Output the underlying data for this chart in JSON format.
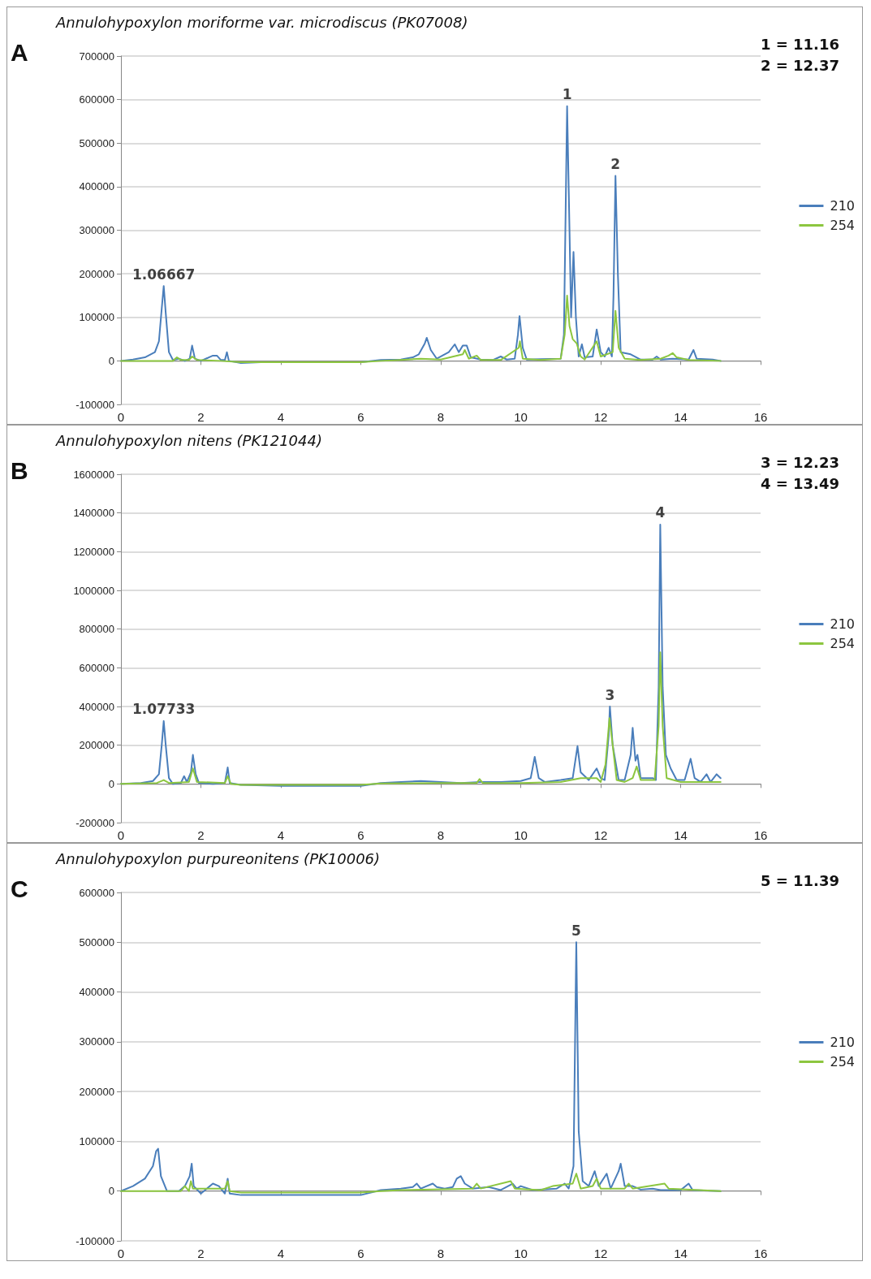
{
  "chart_data": [
    {
      "type": "line",
      "title": "Annulohypoxylon moriforme var. microdiscus (PK07008)",
      "xlim": [
        0,
        16
      ],
      "xticks": [
        0,
        2,
        4,
        6,
        8,
        10,
        12,
        14,
        16
      ],
      "ylim": [
        -100000,
        700000
      ],
      "yticks": [
        -100000,
        0,
        100000,
        200000,
        300000,
        400000,
        500000,
        600000,
        700000
      ],
      "grid": "y",
      "legend": "right",
      "annotations": [
        "A",
        "1 = 11.16",
        "2 = 12.37",
        {
          "text": "1.06667",
          "x": 1.07,
          "y": 172000
        },
        {
          "text": "1",
          "x": 11.16,
          "y": 585000
        },
        {
          "text": "2",
          "x": 12.37,
          "y": 425000
        }
      ],
      "series": [
        {
          "name": "210",
          "color": "#4a7ebb",
          "x": [
            0,
            0.3,
            0.6,
            0.85,
            0.95,
            1.02,
            1.07,
            1.12,
            1.2,
            1.3,
            1.45,
            1.6,
            1.72,
            1.78,
            1.85,
            2,
            2.3,
            2.4,
            2.5,
            2.6,
            2.65,
            2.7,
            3,
            3.5,
            4,
            6,
            6.5,
            7,
            7.3,
            7.45,
            7.6,
            7.65,
            7.75,
            7.9,
            8.2,
            8.35,
            8.45,
            8.55,
            8.65,
            8.75,
            9,
            9.3,
            9.5,
            9.65,
            9.85,
            9.93,
            9.97,
            10.05,
            10.15,
            10.5,
            11,
            11.08,
            11.16,
            11.22,
            11.26,
            11.32,
            11.38,
            11.45,
            11.53,
            11.6,
            11.8,
            11.9,
            12,
            12.1,
            12.2,
            12.28,
            12.32,
            12.37,
            12.43,
            12.5,
            12.75,
            13,
            13.3,
            13.4,
            13.5,
            13.8,
            14.2,
            14.32,
            14.4,
            14.8,
            15
          ],
          "values": [
            0,
            3000,
            8000,
            20000,
            45000,
            120000,
            172000,
            110000,
            20000,
            2000,
            5000,
            0,
            5000,
            35000,
            5000,
            0,
            12000,
            12000,
            2000,
            2000,
            20000,
            0,
            -5000,
            -3000,
            -3000,
            -3000,
            2000,
            3000,
            8000,
            15000,
            40000,
            53000,
            25000,
            5000,
            20000,
            38000,
            20000,
            35000,
            35000,
            8000,
            3000,
            2000,
            10000,
            3000,
            5000,
            60000,
            103000,
            30000,
            3000,
            4000,
            5000,
            60000,
            585000,
            300000,
            100000,
            250000,
            100000,
            10000,
            38000,
            8000,
            10000,
            72000,
            20000,
            10000,
            30000,
            10000,
            150000,
            425000,
            200000,
            20000,
            15000,
            3000,
            3000,
            10000,
            3000,
            5000,
            3000,
            25000,
            5000,
            3000,
            0
          ]
        },
        {
          "name": "254",
          "color": "#8cc63f",
          "x": [
            0,
            1,
            1.3,
            1.4,
            1.5,
            1.7,
            1.78,
            1.9,
            2.5,
            3,
            6,
            6.5,
            7,
            7.5,
            8,
            8.55,
            8.6,
            8.7,
            8.9,
            9,
            9.5,
            9.95,
            9.98,
            10.05,
            10.5,
            11,
            11.1,
            11.16,
            11.22,
            11.3,
            11.4,
            11.5,
            11.6,
            11.9,
            12,
            12.3,
            12.37,
            12.45,
            12.6,
            13,
            13.5,
            13.7,
            13.8,
            13.9,
            14.2,
            15
          ],
          "values": [
            0,
            0,
            0,
            8000,
            2000,
            2000,
            10000,
            2000,
            0,
            -3000,
            -3000,
            0,
            2000,
            5000,
            3000,
            15000,
            25000,
            5000,
            12000,
            2000,
            2000,
            30000,
            45000,
            5000,
            2000,
            5000,
            60000,
            150000,
            80000,
            50000,
            40000,
            10000,
            3000,
            45000,
            10000,
            20000,
            115000,
            30000,
            5000,
            2000,
            5000,
            12000,
            18000,
            8000,
            2000,
            0
          ]
        }
      ]
    },
    {
      "type": "line",
      "title": "Annulohypoxylon nitens (PK121044)",
      "xlim": [
        0,
        16
      ],
      "xticks": [
        0,
        2,
        4,
        6,
        8,
        10,
        12,
        14,
        16
      ],
      "ylim": [
        -200000,
        1600000
      ],
      "yticks": [
        -200000,
        0,
        200000,
        400000,
        600000,
        800000,
        1000000,
        1200000,
        1400000,
        1600000
      ],
      "grid": "y",
      "legend": "right",
      "annotations": [
        "B",
        "3 = 12.23",
        "4 = 13.49",
        {
          "text": "1.07733",
          "x": 1.07,
          "y": 325000
        },
        {
          "text": "3",
          "x": 12.23,
          "y": 400000
        },
        {
          "text": "4",
          "x": 13.49,
          "y": 1340000
        }
      ],
      "series": [
        {
          "name": "210",
          "color": "#4a7ebb",
          "x": [
            0,
            0.5,
            0.8,
            0.95,
            1.02,
            1.07,
            1.12,
            1.2,
            1.3,
            1.5,
            1.58,
            1.65,
            1.75,
            1.8,
            1.87,
            1.95,
            2.3,
            2.6,
            2.67,
            2.72,
            3,
            4,
            6,
            6.5,
            7,
            7.5,
            8,
            8.5,
            9,
            9.5,
            10,
            10.25,
            10.35,
            10.45,
            10.6,
            11,
            11.3,
            11.42,
            11.5,
            11.7,
            11.9,
            12,
            12.1,
            12.2,
            12.23,
            12.3,
            12.45,
            12.6,
            12.75,
            12.8,
            12.87,
            12.92,
            13,
            13.3,
            13.38,
            13.45,
            13.49,
            13.55,
            13.63,
            13.75,
            13.9,
            14.1,
            14.25,
            14.35,
            14.5,
            14.65,
            14.75,
            14.9,
            15
          ],
          "values": [
            0,
            5000,
            15000,
            50000,
            200000,
            325000,
            200000,
            30000,
            0,
            5000,
            40000,
            10000,
            60000,
            150000,
            50000,
            5000,
            0,
            5000,
            85000,
            5000,
            -5000,
            -10000,
            -10000,
            5000,
            10000,
            15000,
            10000,
            5000,
            10000,
            10000,
            15000,
            30000,
            140000,
            30000,
            10000,
            20000,
            30000,
            195000,
            60000,
            20000,
            80000,
            30000,
            20000,
            250000,
            400000,
            200000,
            20000,
            20000,
            150000,
            290000,
            120000,
            150000,
            30000,
            30000,
            20000,
            500000,
            1340000,
            500000,
            150000,
            80000,
            20000,
            20000,
            130000,
            30000,
            10000,
            50000,
            10000,
            50000,
            30000
          ]
        },
        {
          "name": "254",
          "color": "#8cc63f",
          "x": [
            0,
            0.9,
            1.07,
            1.2,
            1.7,
            1.8,
            1.9,
            2.6,
            2.67,
            2.75,
            3,
            6,
            6.5,
            8,
            8.9,
            8.97,
            9.05,
            10,
            11,
            11.5,
            11.9,
            12,
            12.12,
            12.22,
            12.3,
            12.4,
            12.6,
            12.8,
            12.9,
            13,
            13.35,
            13.45,
            13.49,
            13.55,
            13.65,
            14,
            14.5,
            15
          ],
          "values": [
            0,
            5000,
            20000,
            5000,
            10000,
            80000,
            10000,
            5000,
            40000,
            0,
            -5000,
            -5000,
            2000,
            5000,
            5000,
            25000,
            5000,
            5000,
            10000,
            30000,
            30000,
            10000,
            100000,
            340000,
            200000,
            20000,
            10000,
            30000,
            90000,
            20000,
            20000,
            300000,
            680000,
            300000,
            30000,
            10000,
            10000,
            10000
          ]
        }
      ]
    },
    {
      "type": "line",
      "title": "Annulohypoxylon purpureonitens (PK10006)",
      "xlim": [
        0,
        16
      ],
      "xticks": [
        0,
        2,
        4,
        6,
        8,
        10,
        12,
        14,
        16
      ],
      "ylim": [
        -100000,
        600000
      ],
      "yticks": [
        -100000,
        0,
        100000,
        200000,
        300000,
        400000,
        500000,
        600000
      ],
      "grid": "y",
      "legend": "right",
      "annotations": [
        "C",
        "5 = 11.39",
        {
          "text": "5",
          "x": 11.39,
          "y": 500000
        }
      ],
      "series": [
        {
          "name": "210",
          "color": "#4a7ebb",
          "x": [
            0,
            0.3,
            0.6,
            0.8,
            0.88,
            0.93,
            1,
            1.15,
            1.45,
            1.6,
            1.72,
            1.77,
            1.82,
            2,
            2.3,
            2.45,
            2.6,
            2.67,
            2.72,
            3,
            4,
            6,
            6.5,
            7,
            7.3,
            7.4,
            7.5,
            7.8,
            7.9,
            8.1,
            8.3,
            8.4,
            8.5,
            8.6,
            8.8,
            9.2,
            9.5,
            9.8,
            9.9,
            10,
            10.3,
            10.9,
            11.1,
            11.2,
            11.32,
            11.39,
            11.45,
            11.55,
            11.7,
            11.85,
            11.95,
            12.15,
            12.25,
            12.45,
            12.5,
            12.6,
            12.8,
            13,
            13.3,
            13.5,
            14,
            14.2,
            14.3,
            15
          ],
          "values": [
            0,
            10000,
            25000,
            50000,
            80000,
            85000,
            30000,
            0,
            0,
            10000,
            30000,
            55000,
            10000,
            -5000,
            15000,
            10000,
            -5000,
            25000,
            -5000,
            -8000,
            -8000,
            -8000,
            2000,
            5000,
            8000,
            15000,
            5000,
            15000,
            8000,
            5000,
            8000,
            25000,
            30000,
            15000,
            5000,
            8000,
            2000,
            15000,
            5000,
            10000,
            2000,
            5000,
            15000,
            5000,
            50000,
            500000,
            120000,
            20000,
            10000,
            40000,
            10000,
            35000,
            5000,
            40000,
            55000,
            10000,
            10000,
            3000,
            5000,
            2000,
            2000,
            15000,
            2000,
            0
          ]
        },
        {
          "name": "254",
          "color": "#8cc63f",
          "x": [
            0,
            1.5,
            1.6,
            1.7,
            1.75,
            1.8,
            2.6,
            2.67,
            2.72,
            3,
            6,
            6.5,
            7,
            8.8,
            8.9,
            9,
            9.75,
            9.85,
            10.5,
            10.8,
            11.3,
            11.39,
            11.5,
            11.8,
            11.9,
            12,
            12.6,
            12.7,
            12.8,
            13.6,
            13.7,
            15
          ],
          "values": [
            0,
            0,
            10000,
            0,
            20000,
            5000,
            5000,
            20000,
            0,
            -3000,
            -3000,
            0,
            2000,
            5000,
            15000,
            5000,
            20000,
            5000,
            2000,
            10000,
            15000,
            35000,
            5000,
            10000,
            25000,
            5000,
            5000,
            15000,
            5000,
            15000,
            5000,
            0
          ]
        }
      ]
    }
  ]
}
